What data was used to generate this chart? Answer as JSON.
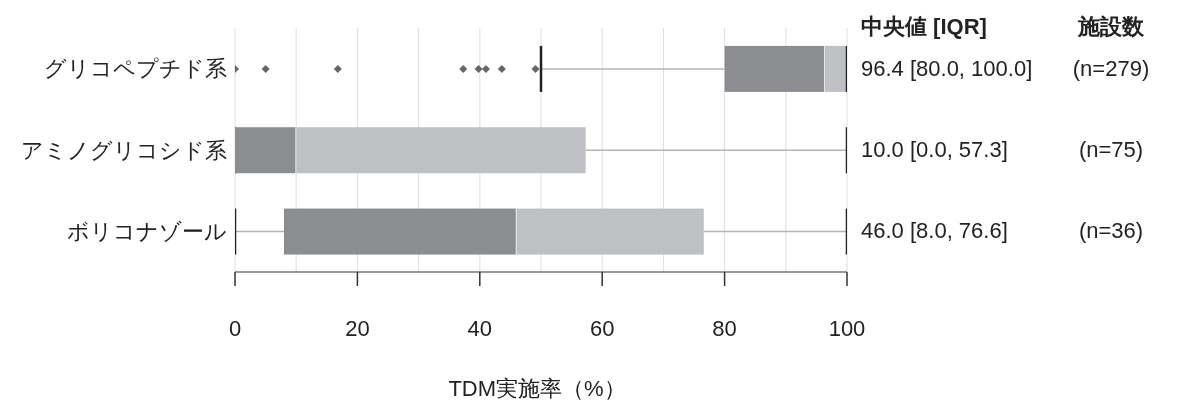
{
  "chart_data": {
    "type": "box",
    "orientation": "horizontal",
    "xlabel": "TDM実施率（%）",
    "categories": [
      "グリコペプチド系",
      "アミノグリコシド系",
      "ボリコナゾール"
    ],
    "colors": [
      "#8c8d91",
      "#8c8d91",
      "#8c8d91"
    ],
    "boxes": [
      {
        "low": 50,
        "q1": 80,
        "median": 96.4,
        "q3": 100,
        "high": 100,
        "outliers": [
          0,
          5,
          16.8,
          37.3,
          39.8,
          41,
          43.6,
          49.1
        ]
      },
      {
        "low": 0,
        "q1": 0,
        "median": 10,
        "q3": 57.3,
        "high": 100
      },
      {
        "low": 0,
        "q1": 8,
        "median": 46,
        "q3": 76.6,
        "high": 100
      }
    ],
    "value_labels": [
      "96.4 [80.0, 100.0]",
      "10.0 [0.0, 57.3]",
      "46.0 [8.0, 76.6]"
    ],
    "annotations": [
      "中央値 [IQR]",
      "施設数",
      "(n=279)",
      "(n=75)",
      "(n=36)"
    ],
    "xlim": [
      0,
      100
    ],
    "xticks": [
      0,
      {
        "value": 10,
        "label": null
      },
      20,
      {
        "value": 30,
        "label": null
      },
      40,
      {
        "value": 50,
        "label": null
      },
      60,
      {
        "value": 70,
        "label": null
      },
      80,
      {
        "value": 90,
        "label": null
      },
      100
    ],
    "grid": "x",
    "marker": "diamond"
  }
}
